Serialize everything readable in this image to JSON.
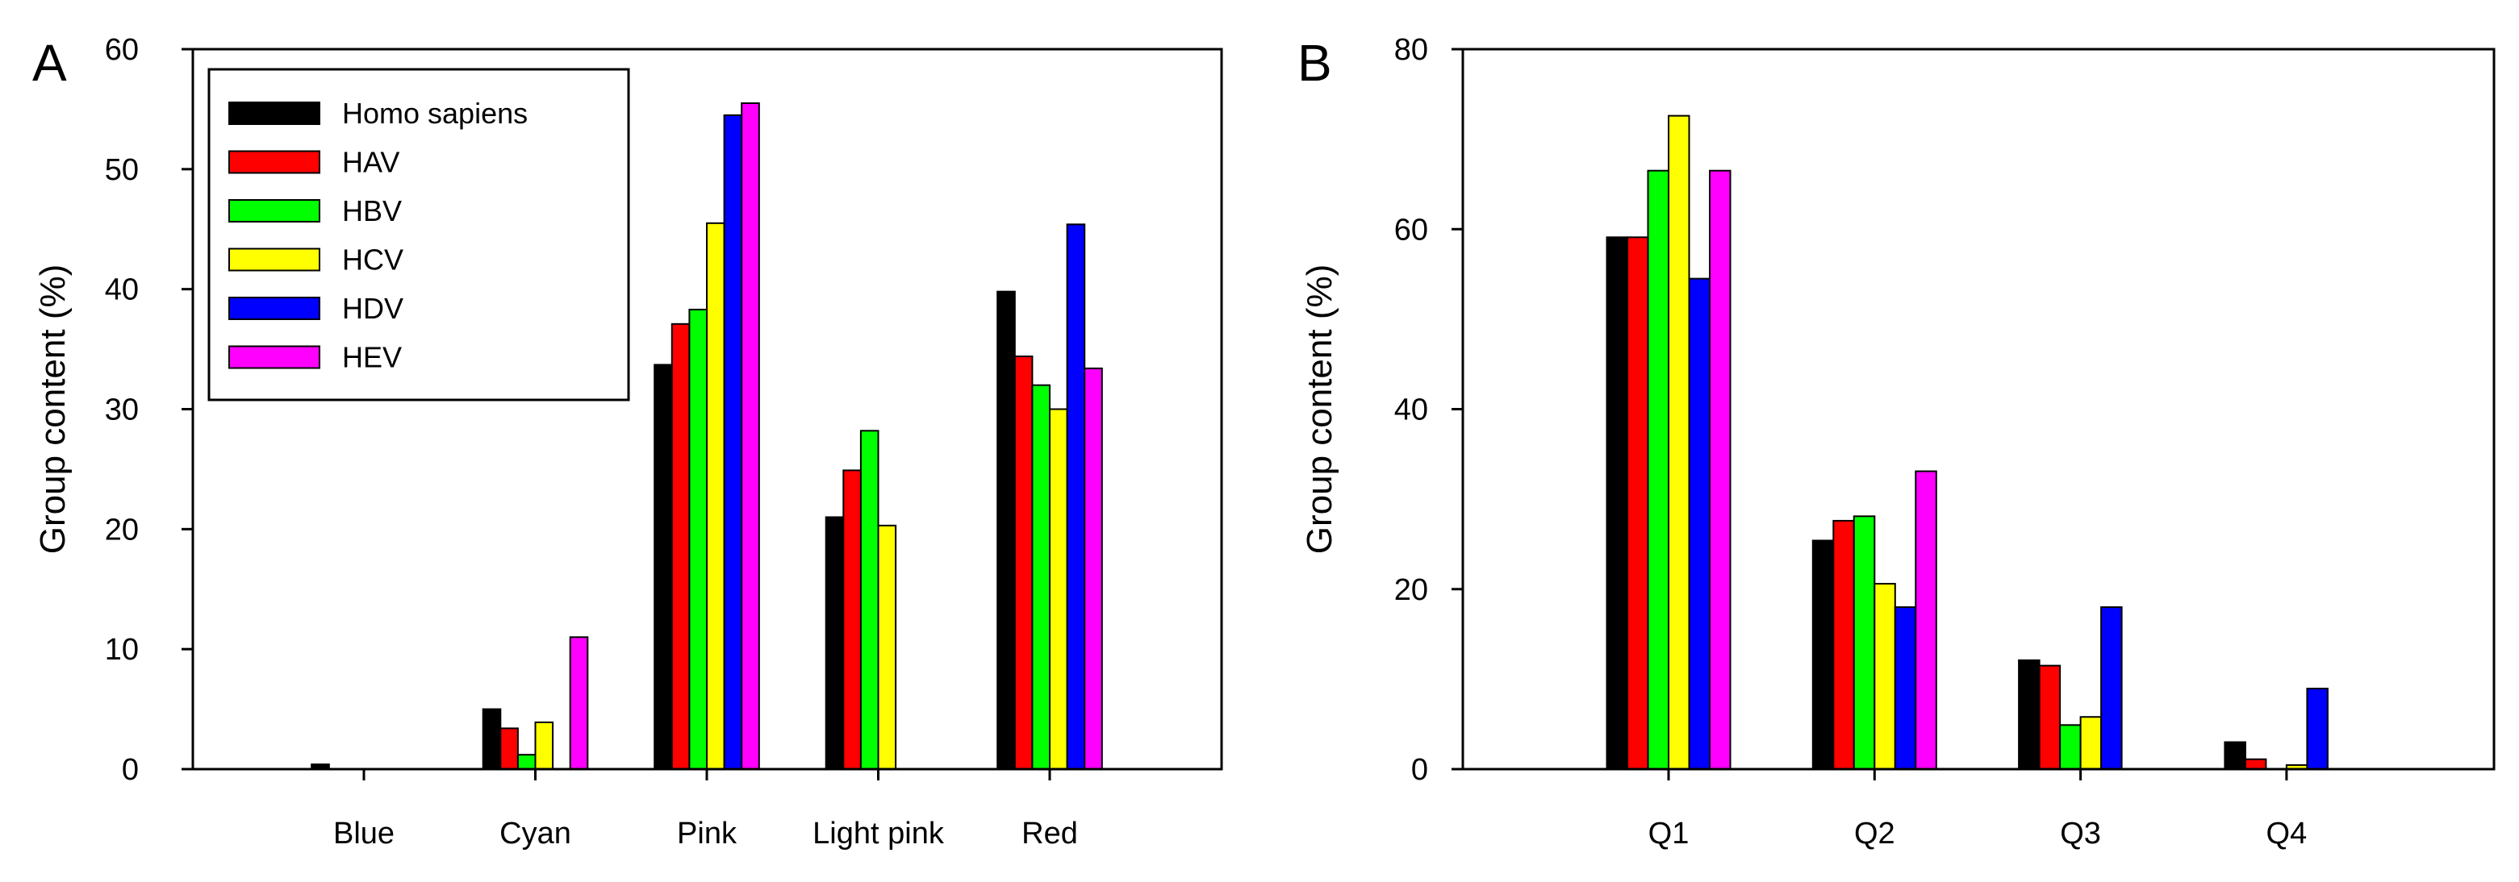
{
  "chart_data": [
    {
      "type": "bar",
      "panel_label": "A",
      "ylabel": "Group content (%)",
      "xlabel": "",
      "ylim": [
        0,
        60
      ],
      "yticks": [
        0,
        10,
        20,
        30,
        40,
        50,
        60
      ],
      "grid": false,
      "legend_position": "top-left",
      "categories": [
        "Blue",
        "Cyan",
        "Pink",
        "Light pink",
        "Red"
      ],
      "series": [
        {
          "name": "Homo sapiens",
          "color": "#000000",
          "values": [
            0.4,
            5.0,
            33.7,
            21.0,
            39.8
          ]
        },
        {
          "name": "HAV",
          "color": "#ff0000",
          "values": [
            0,
            3.4,
            37.1,
            24.9,
            34.4
          ]
        },
        {
          "name": "HBV",
          "color": "#00ff00",
          "values": [
            0,
            1.2,
            38.3,
            28.2,
            32.0
          ]
        },
        {
          "name": "HCV",
          "color": "#ffff00",
          "values": [
            0,
            3.9,
            45.5,
            20.3,
            30.0
          ]
        },
        {
          "name": "HDV",
          "color": "#0000ff",
          "values": [
            0,
            0,
            54.5,
            0,
            45.4
          ]
        },
        {
          "name": "HEV",
          "color": "#ff00ff",
          "values": [
            0,
            11.0,
            55.5,
            0,
            33.4
          ]
        }
      ]
    },
    {
      "type": "bar",
      "panel_label": "B",
      "ylabel": "Group content (%)",
      "xlabel": "",
      "ylim": [
        0,
        80
      ],
      "yticks": [
        0,
        20,
        40,
        60,
        80
      ],
      "grid": false,
      "categories": [
        "Q1",
        "Q2",
        "Q3",
        "Q4"
      ],
      "series": [
        {
          "name": "Homo sapiens",
          "color": "#000000",
          "values": [
            59.1,
            25.4,
            12.1,
            3.0
          ]
        },
        {
          "name": "HAV",
          "color": "#ff0000",
          "values": [
            59.1,
            27.6,
            11.5,
            1.1
          ]
        },
        {
          "name": "HBV",
          "color": "#00ff00",
          "values": [
            66.5,
            28.1,
            4.9,
            0
          ]
        },
        {
          "name": "HCV",
          "color": "#ffff00",
          "values": [
            72.6,
            20.6,
            5.8,
            0.45
          ]
        },
        {
          "name": "HDV",
          "color": "#0000ff",
          "values": [
            54.5,
            18.0,
            18.0,
            8.95
          ]
        },
        {
          "name": "HEV",
          "color": "#ff00ff",
          "values": [
            66.5,
            33.1,
            0,
            0
          ]
        }
      ]
    }
  ]
}
